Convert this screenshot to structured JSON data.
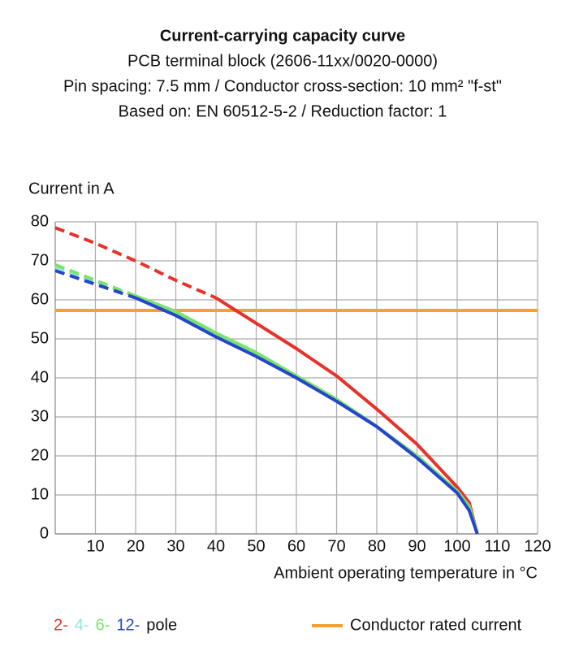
{
  "chart_data": {
    "type": "line",
    "title": "Current-carrying capacity curve",
    "subtitles": [
      "PCB terminal block (2606-11xx/0020-0000)",
      "Pin spacing: 7.5 mm / Conductor cross-section: 10 mm² \"f-st\"",
      "Based on: EN 60512-5-2 / Reduction factor: 1"
    ],
    "y_label": "Current in A",
    "x_label": "Ambient operating temperature in °C",
    "x": [
      0,
      10,
      20,
      30,
      40,
      50,
      60,
      70,
      80,
      90,
      100,
      103,
      105
    ],
    "series": [
      {
        "name": "2-",
        "color": "#e8312a",
        "dash_until": 40,
        "values": [
          78.5,
          74.5,
          70,
          65,
          60.5,
          54,
          47.5,
          40.5,
          32,
          23,
          12,
          8,
          0
        ]
      },
      {
        "name": "4-",
        "color": "#8ee6e0",
        "dash_until": 20,
        "values": [
          68.5,
          64.5,
          61,
          56.5,
          51,
          46,
          40.5,
          34.5,
          27.5,
          20,
          11,
          7,
          0
        ]
      },
      {
        "name": "6-",
        "color": "#7be36a",
        "dash_until": 20,
        "values": [
          69,
          65,
          61,
          57,
          51.5,
          46.5,
          40.5,
          34.5,
          27.5,
          20,
          11,
          7,
          0
        ]
      },
      {
        "name": "12-",
        "color": "#2446c8",
        "dash_until": 20,
        "values": [
          67.5,
          64,
          60.5,
          56,
          50.5,
          45.5,
          40,
          34,
          27.5,
          19.5,
          10.5,
          6,
          0
        ]
      }
    ],
    "legend_suffix": "pole",
    "rated": {
      "name": "Conductor rated current",
      "color": "#f5a030",
      "x": [
        0,
        120
      ],
      "values": [
        57.3,
        57.3
      ]
    },
    "xlim": [
      0,
      120
    ],
    "xticks": [
      10,
      20,
      30,
      40,
      50,
      60,
      70,
      80,
      90,
      100,
      110,
      120
    ],
    "ylim": [
      0,
      80
    ],
    "yticks": [
      0,
      10,
      20,
      30,
      40,
      50,
      60,
      70,
      80
    ],
    "grid": true
  }
}
